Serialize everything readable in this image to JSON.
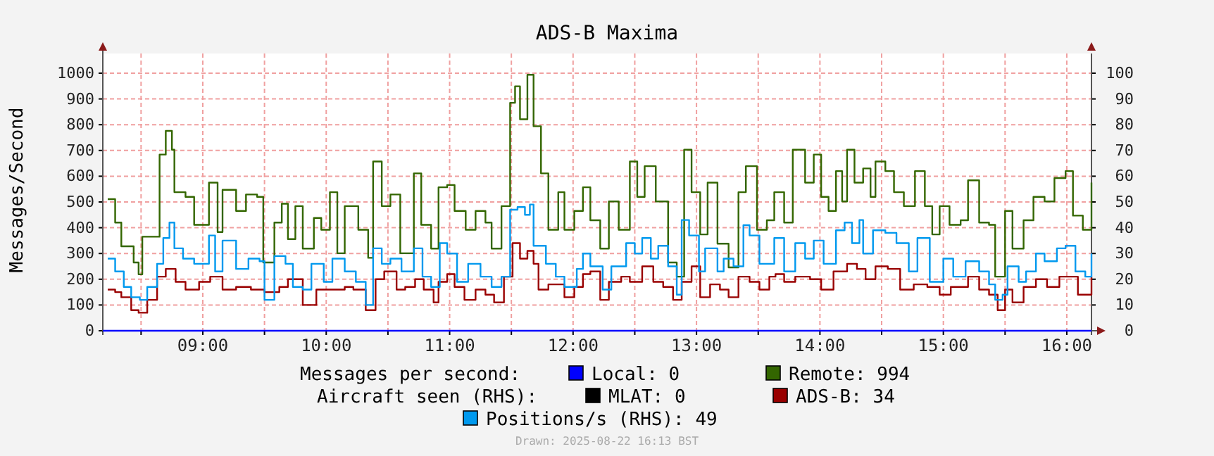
{
  "chart_data": {
    "type": "step",
    "title": "ADS-B Maxima",
    "ylabel": "Messages/Second",
    "xlim": [
      8.19,
      16.2
    ],
    "ylim": [
      0,
      1000
    ],
    "y2lim": [
      0,
      100
    ],
    "xticks": [
      {
        "value": 8.5,
        "label": null
      },
      {
        "value": 9,
        "label": "09:00"
      },
      {
        "value": 9.5,
        "label": null
      },
      {
        "value": 10,
        "label": "10:00"
      },
      {
        "value": 10.5,
        "label": null
      },
      {
        "value": 11,
        "label": "11:00"
      },
      {
        "value": 11.5,
        "label": null
      },
      {
        "value": 12,
        "label": "12:00"
      },
      {
        "value": 12.5,
        "label": null
      },
      {
        "value": 13,
        "label": "13:00"
      },
      {
        "value": 13.5,
        "label": null
      },
      {
        "value": 14,
        "label": "14:00"
      },
      {
        "value": 14.5,
        "label": null
      },
      {
        "value": 15,
        "label": "15:00"
      },
      {
        "value": 15.5,
        "label": null
      },
      {
        "value": 16,
        "label": "16:00"
      }
    ],
    "yticks": [
      0,
      100,
      200,
      300,
      400,
      500,
      600,
      700,
      800,
      900,
      1000
    ],
    "y2ticks": [
      0,
      10,
      20,
      30,
      40,
      50,
      60,
      70,
      80,
      90,
      100
    ],
    "grid": true,
    "legend": "bottom",
    "annotations": [
      "Messages per second:",
      "Aircraft seen (RHS):",
      "Drawn: 2025-08-22 16:13 BST"
    ],
    "series": [
      {
        "name": "Local: 0",
        "color": "#0000ff",
        "x": [
          8.19,
          16.2
        ],
        "values": [
          0,
          0
        ]
      },
      {
        "name": "Remote: 994",
        "color": "#336600",
        "x": [
          8.23,
          8.29,
          8.34,
          8.44,
          8.48,
          8.51,
          8.61,
          8.65,
          8.7,
          8.75,
          8.77,
          8.86,
          8.93,
          9.05,
          9.12,
          9.16,
          9.27,
          9.35,
          9.44,
          9.49,
          9.58,
          9.64,
          9.69,
          9.75,
          9.81,
          9.9,
          9.96,
          10.03,
          10.09,
          10.15,
          10.26,
          10.34,
          10.38,
          10.45,
          10.52,
          10.6,
          10.71,
          10.77,
          10.85,
          10.91,
          10.98,
          11.04,
          11.13,
          11.21,
          11.29,
          11.34,
          11.42,
          11.49,
          11.53,
          11.57,
          11.63,
          11.68,
          11.74,
          11.8,
          11.88,
          11.93,
          12.01,
          12.08,
          12.14,
          12.22,
          12.29,
          12.37,
          12.46,
          12.52,
          12.58,
          12.67,
          12.77,
          12.84,
          12.9,
          12.96,
          13.03,
          13.09,
          13.17,
          13.26,
          13.34,
          13.4,
          13.49,
          13.57,
          13.63,
          13.71,
          13.78,
          13.88,
          13.95,
          14.01,
          14.07,
          14.13,
          14.18,
          14.22,
          14.28,
          14.35,
          14.41,
          14.45,
          14.53,
          14.6,
          14.68,
          14.77,
          14.85,
          14.91,
          14.97,
          15.05,
          15.14,
          15.2,
          15.29,
          15.37,
          15.42,
          15.5,
          15.56,
          15.65,
          15.73,
          15.82,
          15.9,
          15.99,
          16.05,
          16.13,
          16.2
        ],
        "values": [
          511,
          420,
          328,
          265,
          219,
          365,
          365,
          684,
          776,
          703,
          538,
          520,
          411,
          575,
          383,
          547,
          465,
          529,
          520,
          265,
          420,
          493,
          356,
          484,
          319,
          438,
          392,
          538,
          301,
          484,
          392,
          283,
          657,
          484,
          529,
          301,
          611,
          411,
          319,
          557,
          566,
          465,
          392,
          465,
          420,
          319,
          484,
          885,
          949,
          821,
          994,
          794,
          611,
          392,
          538,
          392,
          465,
          557,
          429,
          319,
          502,
          392,
          657,
          520,
          639,
          502,
          265,
          210,
          703,
          538,
          374,
          575,
          338,
          246,
          538,
          639,
          392,
          429,
          538,
          420,
          703,
          575,
          684,
          520,
          465,
          620,
          502,
          703,
          575,
          630,
          520,
          657,
          620,
          538,
          484,
          620,
          484,
          374,
          484,
          411,
          429,
          584,
          420,
          411,
          210,
          465,
          319,
          429,
          520,
          502,
          593,
          620,
          447,
          392,
          575
        ]
      },
      {
        "name": "MLAT: 0",
        "color": "#000000",
        "axis": "y2",
        "values": [
          null
        ]
      },
      {
        "name": "ADS-B: 34",
        "color": "#990000",
        "axis": "y2",
        "x": [
          8.23,
          8.29,
          8.34,
          8.42,
          8.48,
          8.55,
          8.63,
          8.7,
          8.78,
          8.86,
          8.97,
          9.06,
          9.16,
          9.27,
          9.39,
          9.5,
          9.62,
          9.69,
          9.81,
          9.92,
          10.03,
          10.15,
          10.22,
          10.32,
          10.4,
          10.47,
          10.57,
          10.64,
          10.72,
          10.79,
          10.87,
          10.91,
          10.98,
          11.04,
          11.12,
          11.21,
          11.29,
          11.36,
          11.44,
          11.51,
          11.57,
          11.63,
          11.68,
          11.72,
          11.8,
          11.93,
          12.01,
          12.08,
          12.14,
          12.22,
          12.29,
          12.39,
          12.46,
          12.56,
          12.65,
          12.73,
          12.81,
          12.88,
          12.96,
          13.03,
          13.11,
          13.19,
          13.26,
          13.34,
          13.43,
          13.51,
          13.59,
          13.64,
          13.71,
          13.8,
          13.92,
          14.01,
          14.11,
          14.22,
          14.3,
          14.37,
          14.45,
          14.55,
          14.65,
          14.76,
          14.87,
          14.97,
          15.06,
          15.2,
          15.29,
          15.37,
          15.44,
          15.5,
          15.56,
          15.65,
          15.75,
          15.84,
          15.94,
          16.01,
          16.09,
          16.2
        ],
        "values": [
          16,
          15,
          13,
          8,
          7,
          12,
          21,
          24,
          19,
          16,
          19,
          21,
          16,
          17,
          16,
          15,
          17,
          20,
          10,
          16,
          16,
          17,
          16,
          8,
          20,
          23,
          16,
          17,
          20,
          16,
          11,
          19,
          22,
          17,
          12,
          16,
          14,
          11,
          21,
          34,
          28,
          31,
          26,
          16,
          18,
          13,
          17,
          22,
          23,
          12,
          19,
          21,
          19,
          25,
          19,
          17,
          12,
          19,
          25,
          13,
          18,
          16,
          13,
          21,
          19,
          16,
          21,
          22,
          19,
          21,
          20,
          16,
          23,
          26,
          24,
          20,
          25,
          24,
          16,
          18,
          17,
          14,
          17,
          21,
          16,
          14,
          8,
          16,
          11,
          17,
          20,
          17,
          21,
          21,
          14,
          21
        ]
      },
      {
        "name": "Positions/s (RHS): 49",
        "color": "#0099ee",
        "axis": "y2",
        "x": [
          8.23,
          8.29,
          8.36,
          8.42,
          8.49,
          8.55,
          8.63,
          8.68,
          8.73,
          8.77,
          8.84,
          8.93,
          9.05,
          9.1,
          9.16,
          9.27,
          9.37,
          9.46,
          9.5,
          9.58,
          9.67,
          9.73,
          9.81,
          9.88,
          9.98,
          10.05,
          10.15,
          10.24,
          10.32,
          10.38,
          10.45,
          10.52,
          10.61,
          10.71,
          10.78,
          10.85,
          10.92,
          10.98,
          11.06,
          11.15,
          11.25,
          11.34,
          11.42,
          11.49,
          11.55,
          11.61,
          11.65,
          11.68,
          11.78,
          11.86,
          11.93,
          12.03,
          12.08,
          12.14,
          12.24,
          12.31,
          12.43,
          12.5,
          12.56,
          12.63,
          12.69,
          12.77,
          12.84,
          12.88,
          12.94,
          13.02,
          13.07,
          13.17,
          13.22,
          13.3,
          13.38,
          13.43,
          13.51,
          13.57,
          13.63,
          13.71,
          13.8,
          13.88,
          13.95,
          14.03,
          14.13,
          14.2,
          14.26,
          14.32,
          14.35,
          14.43,
          14.53,
          14.62,
          14.72,
          14.79,
          14.89,
          15.0,
          15.08,
          15.18,
          15.29,
          15.37,
          15.42,
          15.48,
          15.52,
          15.61,
          15.67,
          15.75,
          15.82,
          15.92,
          15.99,
          16.07,
          16.15,
          16.2
        ],
        "values": [
          28,
          23,
          17,
          13,
          12,
          17,
          26,
          36,
          42,
          32,
          28,
          26,
          37,
          23,
          35,
          24,
          28,
          27,
          12,
          29,
          26,
          17,
          16,
          26,
          19,
          28,
          23,
          19,
          10,
          32,
          26,
          28,
          23,
          32,
          21,
          17,
          34,
          30,
          19,
          26,
          21,
          17,
          21,
          47,
          48,
          45,
          49,
          33,
          26,
          21,
          17,
          24,
          30,
          25,
          16,
          25,
          34,
          30,
          36,
          28,
          33,
          25,
          14,
          43,
          37,
          23,
          32,
          23,
          28,
          25,
          41,
          37,
          26,
          26,
          36,
          23,
          34,
          28,
          35,
          26,
          39,
          42,
          34,
          43,
          30,
          39,
          38,
          34,
          23,
          36,
          19,
          28,
          21,
          27,
          23,
          18,
          12,
          14,
          25,
          19,
          23,
          30,
          27,
          32,
          33,
          23,
          21,
          30
        ]
      }
    ]
  }
}
